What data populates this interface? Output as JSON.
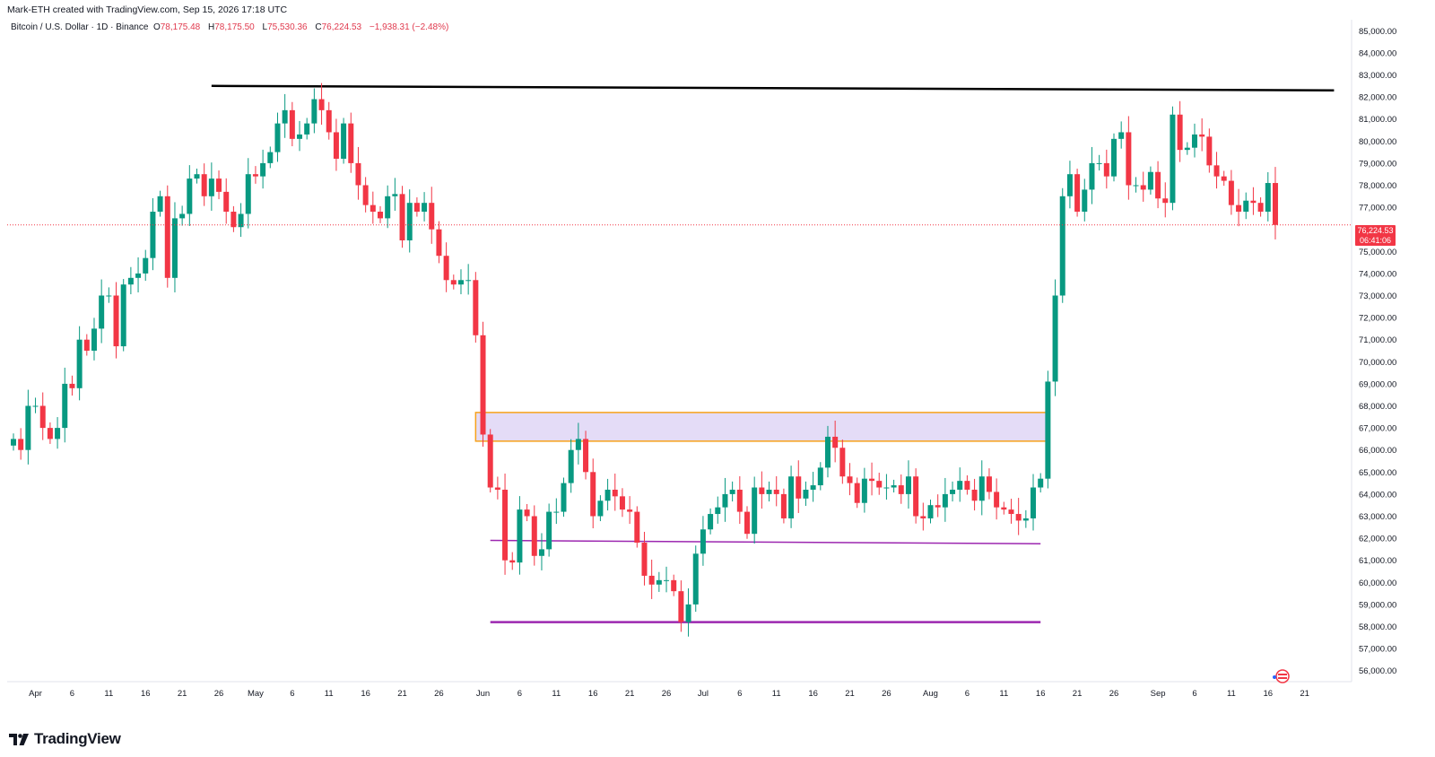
{
  "header": {
    "credit": "Mark-ETH created with TradingView.com, Sep 15, 2026 17:18 UTC",
    "symbol": "Bitcoin / U.S. Dollar · 1D · Binance",
    "open_label": "O",
    "open_value": "78,175.48",
    "high_label": "H",
    "high_value": "78,175.50",
    "low_label": "L",
    "low_value": "75,530.36",
    "close_label": "C",
    "close_value": "76,224.53",
    "change": "−1,938.31 (−2.48%)"
  },
  "brand": {
    "name": "TradingView"
  },
  "price_tag": {
    "price": "76,224.53",
    "countdown": "06:41:06"
  },
  "colors": {
    "up": "#089981",
    "down": "#f23645",
    "zone_fill": "#e4dcf7",
    "zone_border": "#f7a21b",
    "support": "#9c27b0",
    "resistance": "#000000"
  },
  "chart_data": {
    "type": "candlestick",
    "y_range": [
      55500,
      85500
    ],
    "y_ticks": [
      "56,000.00",
      "57,000.00",
      "58,000.00",
      "59,000.00",
      "60,000.00",
      "61,000.00",
      "62,000.00",
      "63,000.00",
      "64,000.00",
      "65,000.00",
      "66,000.00",
      "67,000.00",
      "68,000.00",
      "69,000.00",
      "70,000.00",
      "71,000.00",
      "72,000.00",
      "73,000.00",
      "74,000.00",
      "75,000.00",
      "77,000.00",
      "78,000.00",
      "79,000.00",
      "80,000.00",
      "81,000.00",
      "82,000.00",
      "83,000.00",
      "84,000.00",
      "85,000.00"
    ],
    "y_tick_values": [
      56000,
      57000,
      58000,
      59000,
      60000,
      61000,
      62000,
      63000,
      64000,
      65000,
      66000,
      67000,
      68000,
      69000,
      70000,
      71000,
      72000,
      73000,
      74000,
      75000,
      77000,
      78000,
      79000,
      80000,
      81000,
      82000,
      83000,
      84000,
      85000
    ],
    "x_labels": [
      {
        "label": "Apr",
        "index": 3
      },
      {
        "label": "6",
        "index": 8
      },
      {
        "label": "11",
        "index": 13
      },
      {
        "label": "16",
        "index": 18
      },
      {
        "label": "21",
        "index": 23
      },
      {
        "label": "26",
        "index": 28
      },
      {
        "label": "May",
        "index": 33
      },
      {
        "label": "6",
        "index": 38
      },
      {
        "label": "11",
        "index": 43
      },
      {
        "label": "16",
        "index": 48
      },
      {
        "label": "21",
        "index": 53
      },
      {
        "label": "26",
        "index": 58
      },
      {
        "label": "Jun",
        "index": 64
      },
      {
        "label": "6",
        "index": 69
      },
      {
        "label": "11",
        "index": 74
      },
      {
        "label": "16",
        "index": 79
      },
      {
        "label": "21",
        "index": 84
      },
      {
        "label": "26",
        "index": 89
      },
      {
        "label": "Jul",
        "index": 94
      },
      {
        "label": "6",
        "index": 99
      },
      {
        "label": "11",
        "index": 104
      },
      {
        "label": "16",
        "index": 109
      },
      {
        "label": "21",
        "index": 114
      },
      {
        "label": "26",
        "index": 119
      },
      {
        "label": "Aug",
        "index": 125
      },
      {
        "label": "6",
        "index": 130
      },
      {
        "label": "11",
        "index": 135
      },
      {
        "label": "16",
        "index": 140
      },
      {
        "label": "21",
        "index": 145
      },
      {
        "label": "26",
        "index": 150
      },
      {
        "label": "Sep",
        "index": 156
      },
      {
        "label": "6",
        "index": 161
      },
      {
        "label": "11",
        "index": 166
      },
      {
        "label": "16",
        "index": 171
      },
      {
        "label": "21",
        "index": 176
      }
    ],
    "closes": [
      66500,
      66000,
      68000,
      68000,
      67000,
      66500,
      67000,
      69000,
      68800,
      71000,
      70500,
      71500,
      73000,
      73000,
      70700,
      73500,
      73800,
      74000,
      74700,
      76800,
      77500,
      73800,
      76500,
      76700,
      78300,
      78500,
      77500,
      78300,
      77700,
      76800,
      76100,
      76700,
      78500,
      78400,
      79000,
      79500,
      80800,
      81400,
      80100,
      80300,
      80800,
      81900,
      81400,
      80400,
      79200,
      80800,
      79000,
      78000,
      77100,
      76800,
      76500,
      77500,
      77600,
      75500,
      77200,
      76800,
      77200,
      76000,
      74800,
      73700,
      73500,
      73700,
      73700,
      71200,
      66700,
      64300,
      64200,
      61000,
      60900,
      63300,
      63000,
      61200,
      61500,
      63200,
      63200,
      64500,
      66000,
      66500,
      65000,
      63000,
      63700,
      64200,
      63900,
      63300,
      63200,
      61800,
      60300,
      59900,
      60100,
      60100,
      59600,
      58200,
      59000,
      61300,
      62400,
      63100,
      63400,
      64000,
      64200,
      63200,
      62200,
      64300,
      64000,
      64200,
      64000,
      62900,
      64800,
      63800,
      64200,
      64400,
      65200,
      66600,
      66100,
      64800,
      64500,
      63600,
      64700,
      64600,
      64300,
      64300,
      64400,
      64000,
      64800,
      63000,
      62900,
      63500,
      63400,
      64000,
      64200,
      64600,
      64200,
      63700,
      64800,
      64100,
      63400,
      63300,
      63100,
      62800,
      62900,
      64300,
      64700,
      69100,
      73000,
      77500,
      78500,
      76800,
      77800,
      79000,
      79000,
      78400,
      80100,
      80400,
      78000,
      78000,
      77800,
      78600,
      77400,
      77200,
      81200,
      79600,
      79700,
      80300,
      80200,
      78900,
      78400,
      78200,
      77100,
      76800,
      77300,
      77200,
      76800,
      78100,
      76200
    ]
  },
  "zone": {
    "top": 67700,
    "bottom": 66400,
    "start_index": 63,
    "end_index": 141
  },
  "lines": {
    "resistance": {
      "start_index": 27,
      "start_price": 82500,
      "end_index": 180,
      "end_price": 82300
    },
    "support_upper": {
      "start_index": 65,
      "start_price": 61900,
      "end_index": 140,
      "end_price": 61750
    },
    "support_lower": {
      "start_index": 65,
      "start_price": 58200,
      "end_index": 140,
      "end_price": 58200
    }
  }
}
